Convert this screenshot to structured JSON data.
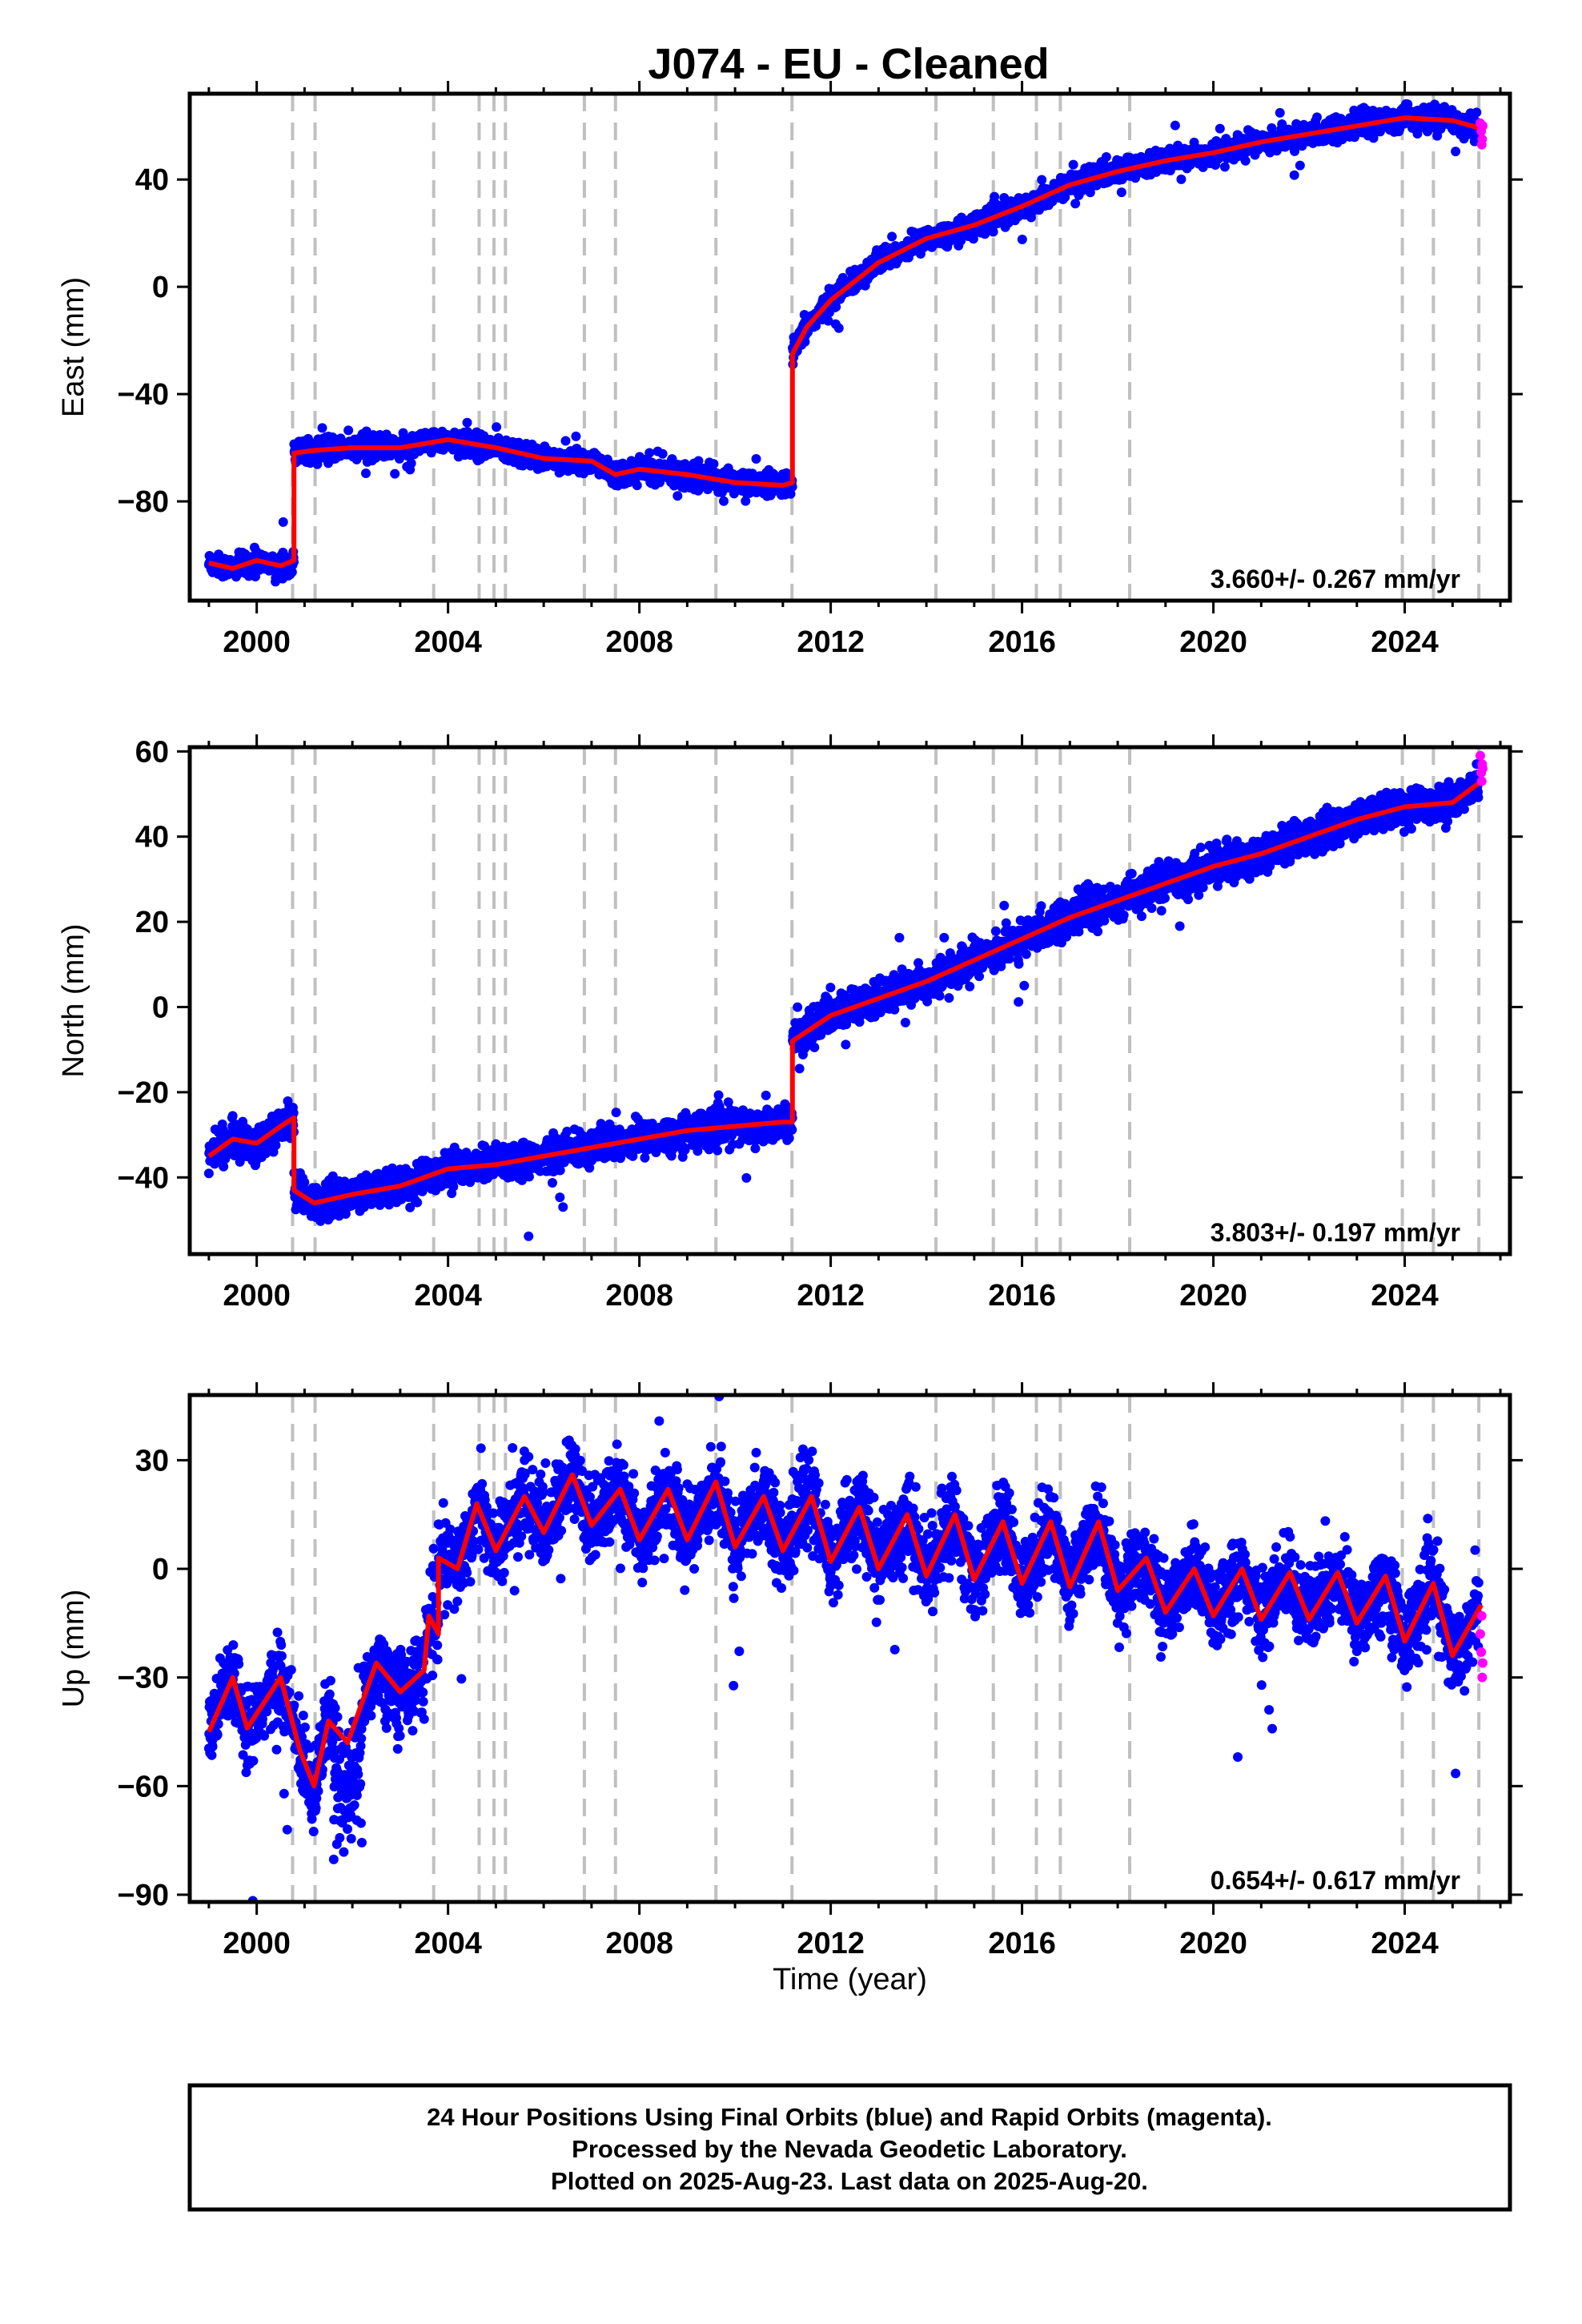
{
  "title": "J074  - EU - Cleaned",
  "caption": {
    "line1": "24 Hour Positions Using Final Orbits (blue) and Rapid Orbits (magenta).",
    "line2": "Processed by the Nevada Geodetic Laboratory.",
    "line3": "Plotted on 2025-Aug-23. Last data on 2025-Aug-20."
  },
  "colors": {
    "final_orbits": "#0000ff",
    "rapid_orbits": "#ff00ff",
    "model": "#ff0000",
    "event_lines": "#c0c0c0"
  },
  "chart_data": [
    {
      "type": "scatter",
      "name": "east",
      "ylabel": "East (mm)",
      "xlim": [
        1998.6,
        2026.2
      ],
      "ylim": [
        -117,
        72
      ],
      "yticks": [
        40,
        0,
        -40,
        -80
      ],
      "xticks": [
        2000,
        2004,
        2008,
        2012,
        2016,
        2020,
        2024
      ],
      "grid": false,
      "rate_label": "3.660+/- 0.267 mm/yr",
      "event_lines": [
        2000.75,
        2001.22,
        2003.7,
        2004.65,
        2004.96,
        2005.2,
        2006.85,
        2007.5,
        2009.6,
        2011.19,
        2014.2,
        2015.4,
        2016.3,
        2016.8,
        2018.25,
        2023.95,
        2024.6,
        2025.55
      ],
      "model": [
        [
          1999.0,
          -103
        ],
        [
          1999.5,
          -105
        ],
        [
          2000.0,
          -102
        ],
        [
          2000.5,
          -104
        ],
        [
          2000.78,
          -102
        ],
        [
          2000.78,
          -62
        ],
        [
          2001.2,
          -61
        ],
        [
          2002.0,
          -60
        ],
        [
          2003.0,
          -60
        ],
        [
          2004.0,
          -57
        ],
        [
          2005.0,
          -60
        ],
        [
          2006.0,
          -64
        ],
        [
          2007.0,
          -65
        ],
        [
          2007.5,
          -70
        ],
        [
          2008.0,
          -68
        ],
        [
          2009.0,
          -70
        ],
        [
          2010.0,
          -73
        ],
        [
          2011.0,
          -74
        ],
        [
          2011.2,
          -73
        ],
        [
          2011.2,
          -25
        ],
        [
          2011.5,
          -15
        ],
        [
          2012.0,
          -5
        ],
        [
          2012.5,
          2
        ],
        [
          2013.0,
          9
        ],
        [
          2014.0,
          18
        ],
        [
          2015.0,
          23
        ],
        [
          2016.0,
          30
        ],
        [
          2017.0,
          38
        ],
        [
          2018.0,
          43
        ],
        [
          2019.0,
          47
        ],
        [
          2020.0,
          50
        ],
        [
          2021.0,
          54
        ],
        [
          2022.0,
          57
        ],
        [
          2023.0,
          60
        ],
        [
          2024.0,
          63
        ],
        [
          2025.0,
          62
        ],
        [
          2025.6,
          59
        ]
      ],
      "rapid": [
        [
          2025.58,
          61
        ],
        [
          2025.6,
          58
        ],
        [
          2025.62,
          55
        ],
        [
          2025.61,
          53
        ],
        [
          2025.63,
          60
        ]
      ]
    },
    {
      "type": "scatter",
      "name": "north",
      "ylabel": "North (mm)",
      "xlim": [
        1998.6,
        2026.2
      ],
      "ylim": [
        -58,
        61
      ],
      "yticks": [
        60,
        40,
        20,
        0,
        -20,
        -40
      ],
      "xticks": [
        2000,
        2004,
        2008,
        2012,
        2016,
        2020,
        2024
      ],
      "grid": false,
      "rate_label": "3.803+/- 0.197 mm/yr",
      "event_lines": [
        2000.75,
        2001.22,
        2003.7,
        2004.65,
        2004.96,
        2005.2,
        2006.85,
        2007.5,
        2009.6,
        2011.19,
        2014.2,
        2015.4,
        2016.3,
        2016.8,
        2018.25,
        2023.95,
        2024.6,
        2025.55
      ],
      "model": [
        [
          1999.0,
          -35
        ],
        [
          1999.5,
          -31
        ],
        [
          2000.0,
          -32
        ],
        [
          2000.5,
          -28
        ],
        [
          2000.78,
          -26
        ],
        [
          2000.78,
          -43
        ],
        [
          2001.2,
          -46
        ],
        [
          2002.0,
          -44
        ],
        [
          2003.0,
          -42
        ],
        [
          2004.0,
          -38
        ],
        [
          2005.0,
          -37
        ],
        [
          2006.0,
          -35
        ],
        [
          2007.0,
          -33
        ],
        [
          2008.0,
          -31
        ],
        [
          2009.0,
          -29
        ],
        [
          2010.0,
          -28
        ],
        [
          2011.0,
          -27
        ],
        [
          2011.2,
          -27
        ],
        [
          2011.2,
          -8
        ],
        [
          2012.0,
          -2
        ],
        [
          2013.0,
          2
        ],
        [
          2014.0,
          6
        ],
        [
          2015.0,
          11
        ],
        [
          2016.0,
          16
        ],
        [
          2017.0,
          21
        ],
        [
          2018.0,
          25
        ],
        [
          2019.0,
          29
        ],
        [
          2020.0,
          33
        ],
        [
          2021.0,
          36
        ],
        [
          2022.0,
          40
        ],
        [
          2023.0,
          44
        ],
        [
          2024.0,
          47
        ],
        [
          2025.0,
          48
        ],
        [
          2025.6,
          53
        ]
      ],
      "rapid": [
        [
          2025.58,
          59
        ],
        [
          2025.6,
          55
        ],
        [
          2025.62,
          57
        ],
        [
          2025.61,
          53
        ],
        [
          2025.63,
          56
        ]
      ]
    },
    {
      "type": "scatter",
      "name": "up",
      "ylabel": "Up (mm)",
      "xlabel": "Time (year)",
      "xlim": [
        1998.6,
        2026.2
      ],
      "ylim": [
        -92,
        48
      ],
      "yticks": [
        30,
        0,
        -30,
        -60,
        -90
      ],
      "xticks": [
        2000,
        2004,
        2008,
        2012,
        2016,
        2020,
        2024
      ],
      "grid": false,
      "rate_label": "0.654+/- 0.617 mm/yr",
      "event_lines": [
        2000.75,
        2001.22,
        2003.7,
        2004.65,
        2004.96,
        2005.2,
        2006.85,
        2007.5,
        2009.6,
        2011.19,
        2014.2,
        2015.4,
        2016.3,
        2016.8,
        2018.25,
        2023.95,
        2024.6,
        2025.55
      ],
      "model": [
        [
          1999.0,
          -45
        ],
        [
          1999.5,
          -30
        ],
        [
          1999.8,
          -44
        ],
        [
          2000.5,
          -30
        ],
        [
          2000.9,
          -50
        ],
        [
          2001.2,
          -60
        ],
        [
          2001.5,
          -42
        ],
        [
          2001.9,
          -48
        ],
        [
          2002.5,
          -26
        ],
        [
          2003.0,
          -34
        ],
        [
          2003.5,
          -28
        ],
        [
          2003.6,
          -13
        ],
        [
          2003.8,
          -18
        ],
        [
          2003.8,
          3
        ],
        [
          2004.2,
          0
        ],
        [
          2004.6,
          18
        ],
        [
          2005.0,
          5
        ],
        [
          2005.6,
          20
        ],
        [
          2006.0,
          10
        ],
        [
          2006.6,
          26
        ],
        [
          2007.0,
          12
        ],
        [
          2007.6,
          22
        ],
        [
          2008.0,
          8
        ],
        [
          2008.6,
          22
        ],
        [
          2009.0,
          8
        ],
        [
          2009.6,
          24
        ],
        [
          2010.0,
          6
        ],
        [
          2010.6,
          20
        ],
        [
          2011.0,
          5
        ],
        [
          2011.6,
          20
        ],
        [
          2012.0,
          2
        ],
        [
          2012.6,
          17
        ],
        [
          2013.0,
          0
        ],
        [
          2013.6,
          15
        ],
        [
          2014.0,
          -2
        ],
        [
          2014.6,
          15
        ],
        [
          2015.0,
          -3
        ],
        [
          2015.6,
          13
        ],
        [
          2016.0,
          -4
        ],
        [
          2016.6,
          13
        ],
        [
          2017.0,
          -5
        ],
        [
          2017.6,
          13
        ],
        [
          2018.0,
          -6
        ],
        [
          2018.6,
          3
        ],
        [
          2019.0,
          -12
        ],
        [
          2019.6,
          0
        ],
        [
          2020.0,
          -13
        ],
        [
          2020.6,
          0
        ],
        [
          2021.0,
          -14
        ],
        [
          2021.6,
          -1
        ],
        [
          2022.0,
          -14
        ],
        [
          2022.6,
          -1
        ],
        [
          2023.0,
          -15
        ],
        [
          2023.6,
          -2
        ],
        [
          2024.0,
          -20
        ],
        [
          2024.6,
          -4
        ],
        [
          2025.0,
          -24
        ],
        [
          2025.6,
          -10
        ]
      ],
      "rapid": [
        [
          2025.58,
          -18
        ],
        [
          2025.6,
          -23
        ],
        [
          2025.62,
          -30
        ],
        [
          2025.61,
          -13
        ],
        [
          2025.63,
          -26
        ]
      ]
    }
  ]
}
